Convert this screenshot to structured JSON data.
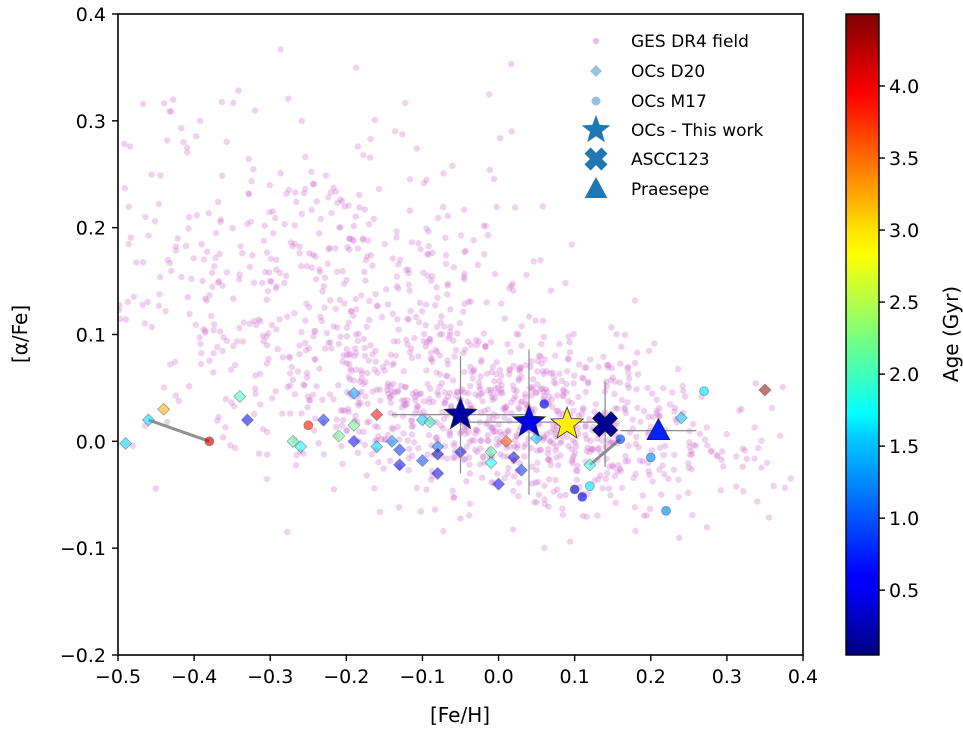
{
  "chart_data": {
    "type": "scatter",
    "xlabel": "[Fe/H]",
    "ylabel": "[α/Fe]",
    "xlim": [
      -0.5,
      0.4
    ],
    "ylim": [
      -0.2,
      0.4
    ],
    "xticks": [
      -0.5,
      -0.4,
      -0.3,
      -0.2,
      -0.1,
      0.0,
      0.1,
      0.2,
      0.3,
      0.4
    ],
    "xtick_labels": [
      "−0.5",
      "−0.4",
      "−0.3",
      "−0.2",
      "−0.1",
      "0.0",
      "0.1",
      "0.2",
      "0.3",
      "0.4"
    ],
    "yticks": [
      -0.2,
      -0.1,
      0.0,
      0.1,
      0.2,
      0.3,
      0.4
    ],
    "ytick_labels": [
      "−0.2",
      "−0.1",
      "0.0",
      "0.1",
      "0.2",
      "0.3",
      "0.4"
    ],
    "colorbar": {
      "label": "Age (Gyr)",
      "range": [
        0.05,
        4.5
      ],
      "ticks": [
        0.5,
        1.0,
        1.5,
        2.0,
        2.5,
        3.0,
        3.5,
        4.0
      ],
      "tick_labels": [
        "0.5",
        "1.0",
        "1.5",
        "2.0",
        "2.5",
        "3.0",
        "3.5",
        "4.0"
      ],
      "colormap": "jet"
    },
    "legend": {
      "placement": "upper-right",
      "entries": [
        "GES DR4 field",
        "OCs D20",
        "OCs M17",
        "OCs - This work",
        "ASCC123",
        "Praesepe"
      ]
    },
    "field_series": {
      "name": "GES DR4 field",
      "color": "#d070d0",
      "n_points": 1400,
      "seed": 7,
      "components": [
        {
          "w": 0.58,
          "x_mean": 0.02,
          "x_sd": 0.15,
          "y_slope": -0.1,
          "y_mean": 0.02,
          "y_sd": 0.04
        },
        {
          "w": 0.42,
          "x_mean": -0.22,
          "x_sd": 0.16,
          "y_slope": -0.1,
          "y_mean": 0.13,
          "y_sd": 0.08
        }
      ]
    },
    "d20": [
      {
        "x": -0.49,
        "y": -0.002,
        "age": 1.5
      },
      {
        "x": -0.46,
        "y": 0.02,
        "age": 1.5
      },
      {
        "x": -0.44,
        "y": 0.03,
        "age": 3.2
      },
      {
        "x": -0.34,
        "y": 0.042,
        "age": 2.0
      },
      {
        "x": -0.33,
        "y": 0.02,
        "age": 0.5
      },
      {
        "x": -0.27,
        "y": 0.0,
        "age": 2.1
      },
      {
        "x": -0.26,
        "y": -0.005,
        "age": 1.7
      },
      {
        "x": -0.23,
        "y": 0.02,
        "age": 0.8
      },
      {
        "x": -0.21,
        "y": 0.005,
        "age": 2.2
      },
      {
        "x": -0.19,
        "y": 0.015,
        "age": 2.2
      },
      {
        "x": -0.19,
        "y": 0.045,
        "age": 1.3
      },
      {
        "x": -0.19,
        "y": 0.0,
        "age": 0.6
      },
      {
        "x": -0.16,
        "y": 0.025,
        "age": 4.0
      },
      {
        "x": -0.16,
        "y": -0.005,
        "age": 1.5
      },
      {
        "x": -0.14,
        "y": 0.0,
        "age": 1.2
      },
      {
        "x": -0.13,
        "y": -0.008,
        "age": 0.8
      },
      {
        "x": -0.13,
        "y": -0.022,
        "age": 0.6
      },
      {
        "x": -0.1,
        "y": 0.02,
        "age": 1.5
      },
      {
        "x": -0.09,
        "y": 0.018,
        "age": 2.0
      },
      {
        "x": -0.1,
        "y": -0.018,
        "age": 0.9
      },
      {
        "x": -0.08,
        "y": -0.005,
        "age": 1.1
      },
      {
        "x": -0.08,
        "y": -0.012,
        "age": 0.3
      },
      {
        "x": -0.08,
        "y": -0.03,
        "age": 0.5
      },
      {
        "x": -0.05,
        "y": -0.01,
        "age": 0.6
      },
      {
        "x": -0.01,
        "y": -0.01,
        "age": 2.1
      },
      {
        "x": -0.01,
        "y": -0.02,
        "age": 1.8
      },
      {
        "x": 0.0,
        "y": -0.04,
        "age": 0.6
      },
      {
        "x": 0.01,
        "y": 0.0,
        "age": 3.6
      },
      {
        "x": 0.02,
        "y": -0.015,
        "age": 0.4
      },
      {
        "x": 0.03,
        "y": -0.027,
        "age": 0.8
      },
      {
        "x": 0.05,
        "y": 0.003,
        "age": 1.5
      },
      {
        "x": 0.12,
        "y": -0.022,
        "age": 1.9
      },
      {
        "x": 0.24,
        "y": 0.022,
        "age": 1.4
      },
      {
        "x": 0.35,
        "y": 0.048,
        "age": 4.4
      }
    ],
    "m17": [
      {
        "x": -0.38,
        "y": 0.0,
        "age": 4.1
      },
      {
        "x": -0.25,
        "y": 0.015,
        "age": 3.8
      },
      {
        "x": 0.06,
        "y": 0.035,
        "age": 0.6
      },
      {
        "x": 0.1,
        "y": -0.045,
        "age": 0.4
      },
      {
        "x": 0.11,
        "y": -0.052,
        "age": 0.6
      },
      {
        "x": 0.12,
        "y": -0.042,
        "age": 1.6
      },
      {
        "x": 0.16,
        "y": 0.002,
        "age": 0.9
      },
      {
        "x": 0.2,
        "y": -0.015,
        "age": 1.2
      },
      {
        "x": 0.22,
        "y": -0.065,
        "age": 1.2
      },
      {
        "x": 0.27,
        "y": 0.047,
        "age": 1.6
      }
    ],
    "this_work": [
      {
        "x": -0.05,
        "y": 0.025,
        "age": 0.2,
        "xerr": 0.09,
        "yerr": 0.055
      },
      {
        "x": 0.04,
        "y": 0.018,
        "age": 0.5,
        "xerr": 0.1,
        "yerr": 0.068
      },
      {
        "x": 0.09,
        "y": 0.016,
        "age": 2.9,
        "xerr": 0.0,
        "yerr": 0.0
      }
    ],
    "ascc123": {
      "x": 0.14,
      "y": 0.016,
      "age": 0.15,
      "xerr": 0.0,
      "yerr": 0.04
    },
    "praesepe": {
      "x": 0.21,
      "y": 0.01,
      "age": 0.75,
      "xerr": 0.05,
      "yerr": 0.0
    },
    "connecting_lines": [
      {
        "x1": -0.46,
        "y1": 0.02,
        "x2": -0.38,
        "y2": 0.0
      },
      {
        "x1": 0.12,
        "y1": -0.022,
        "x2": 0.16,
        "y2": 0.002
      }
    ]
  }
}
